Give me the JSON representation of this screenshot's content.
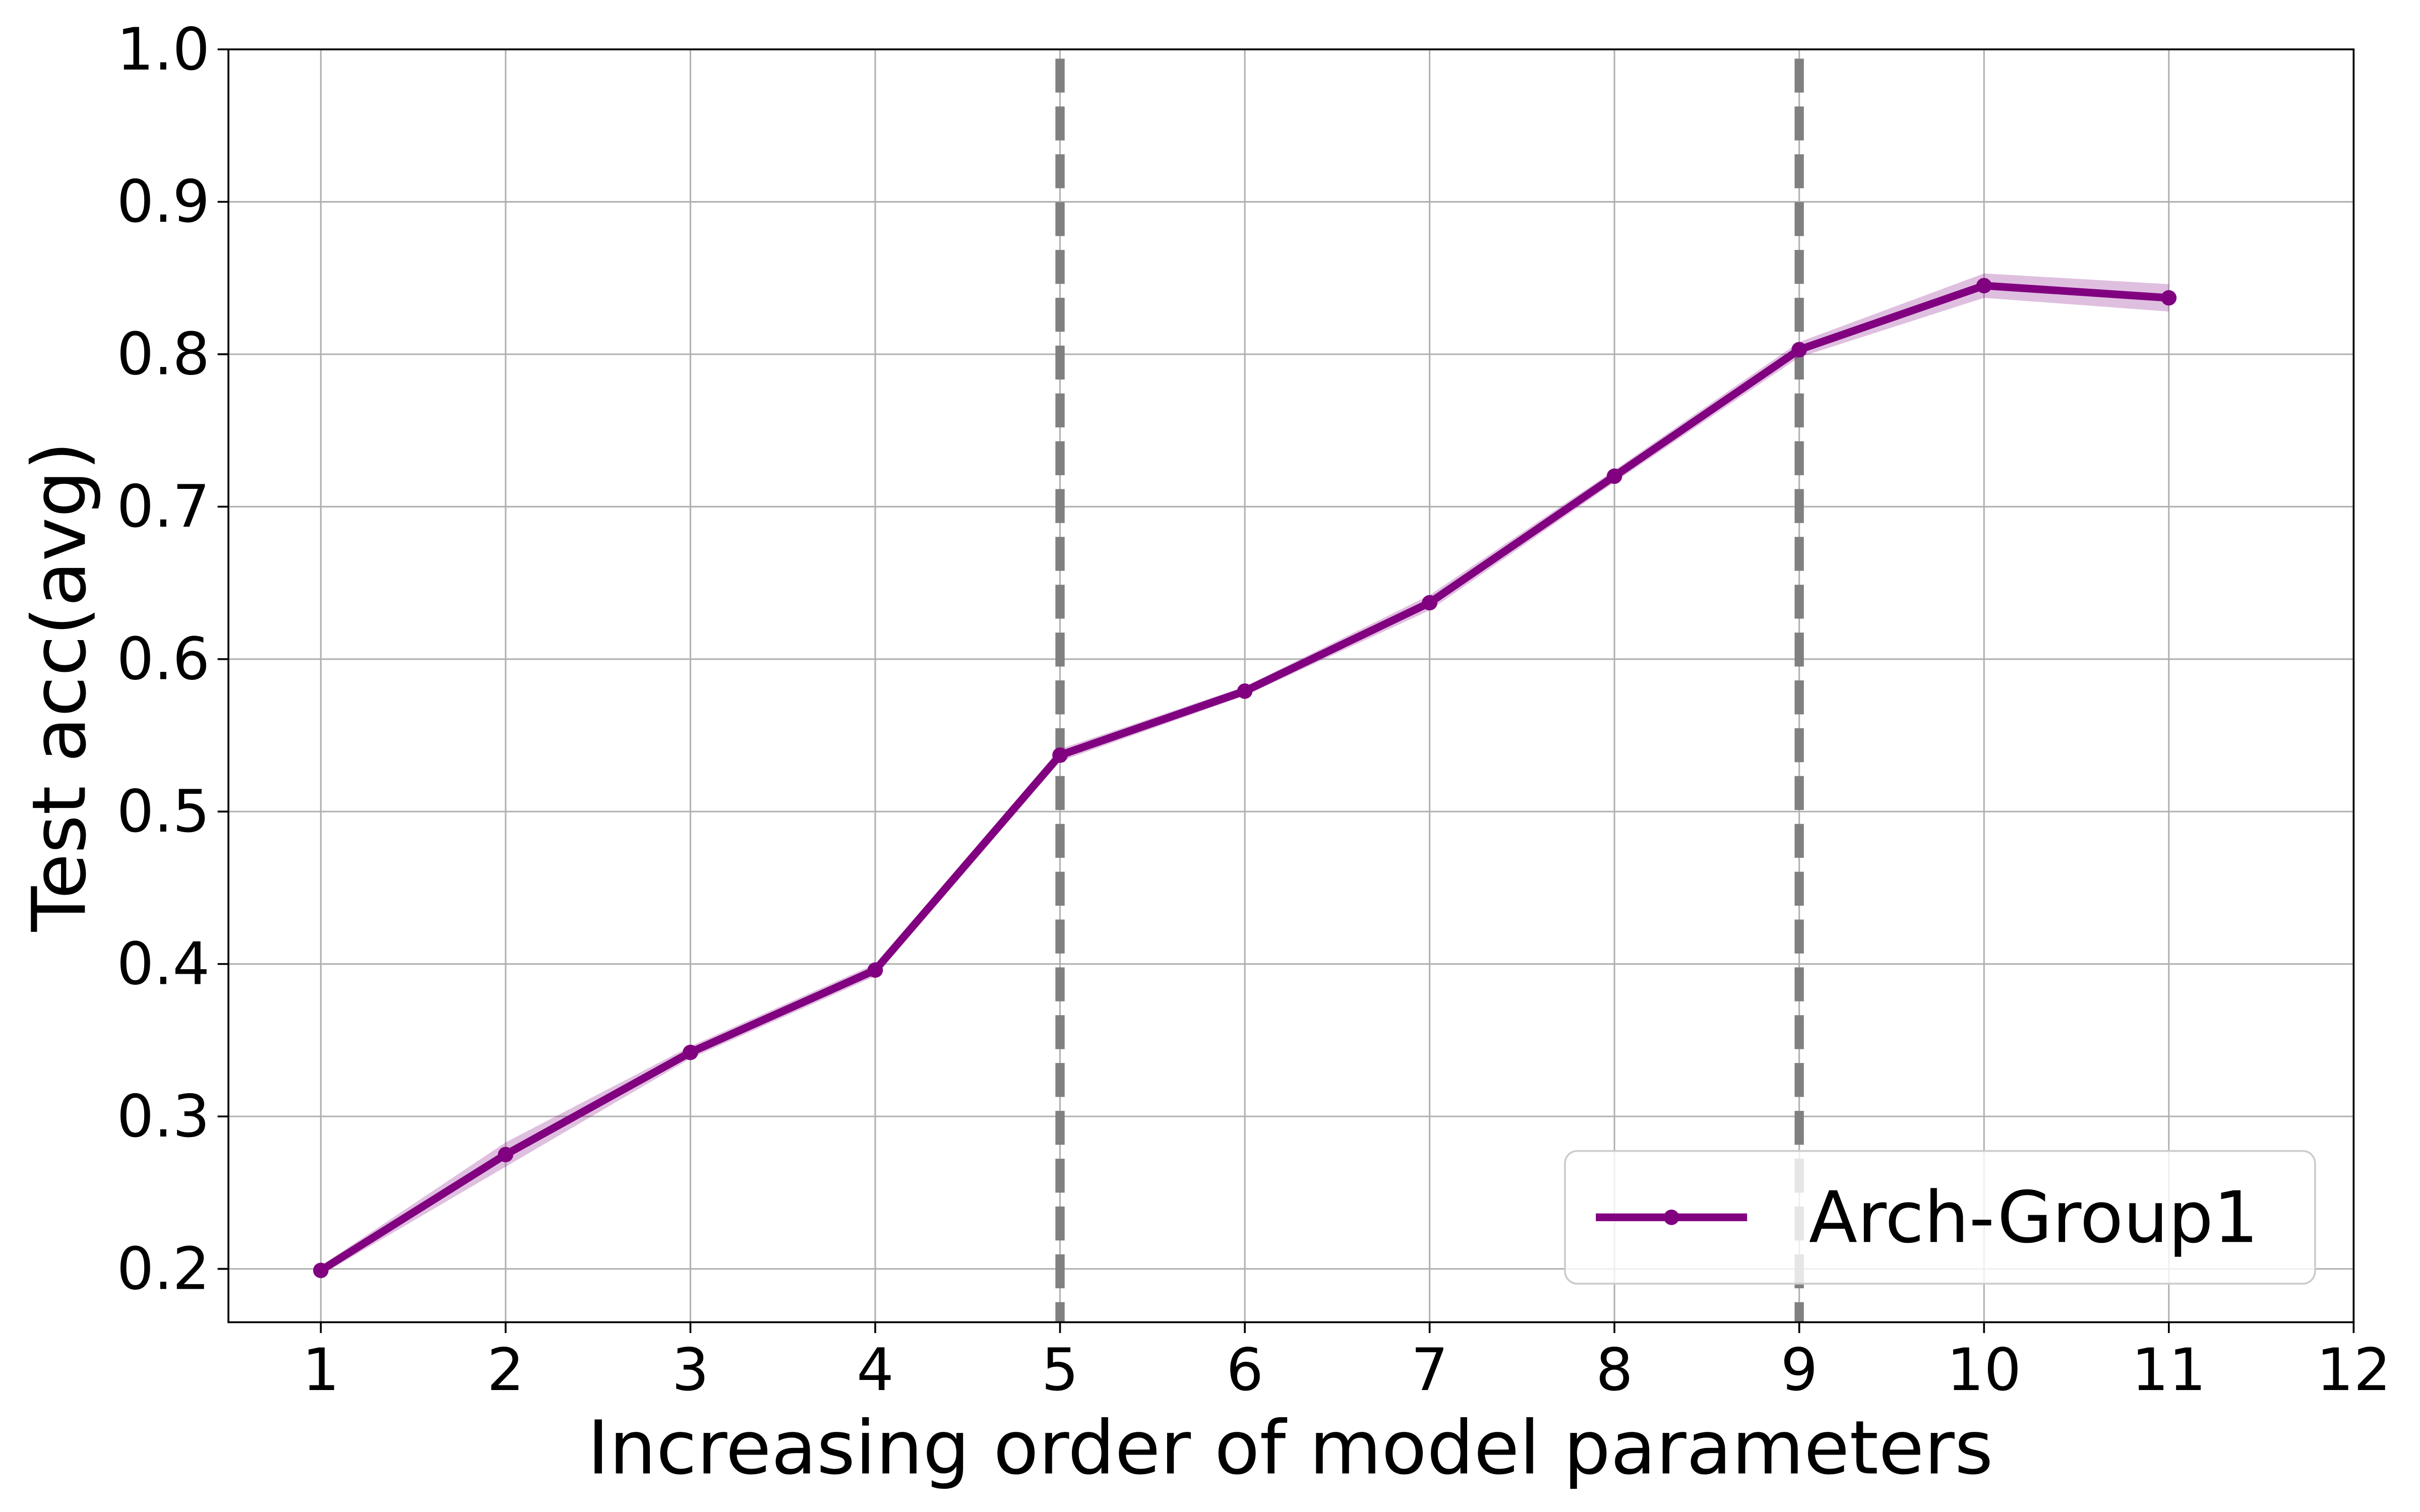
{
  "chart_data": {
    "type": "line",
    "x_label": "Increasing order of model parameters",
    "y_label": "Test acc(avg)",
    "x": [
      1,
      2,
      3,
      4,
      5,
      6,
      7,
      8,
      9,
      10,
      11
    ],
    "series": [
      {
        "name": "Arch-Group1",
        "color": "#800080",
        "values": [
          0.199,
          0.275,
          0.342,
          0.396,
          0.537,
          0.579,
          0.637,
          0.72,
          0.803,
          0.845,
          0.837
        ],
        "error": [
          0.003,
          0.008,
          0.004,
          0.004,
          0.004,
          0.003,
          0.005,
          0.004,
          0.005,
          0.008,
          0.009
        ]
      }
    ],
    "vlines": [
      5,
      9
    ],
    "vline_color": "#808080",
    "xlim": [
      0.5,
      12
    ],
    "ylim": [
      0.165,
      1.0
    ],
    "xticks": [
      1,
      2,
      3,
      4,
      5,
      6,
      7,
      8,
      9,
      10,
      11,
      12
    ],
    "yticks": [
      0.2,
      0.3,
      0.4,
      0.5,
      0.6,
      0.7,
      0.8,
      0.9,
      {
        "value": 1,
        "label": "1.0"
      }
    ],
    "grid": true,
    "legend": "lower right"
  }
}
